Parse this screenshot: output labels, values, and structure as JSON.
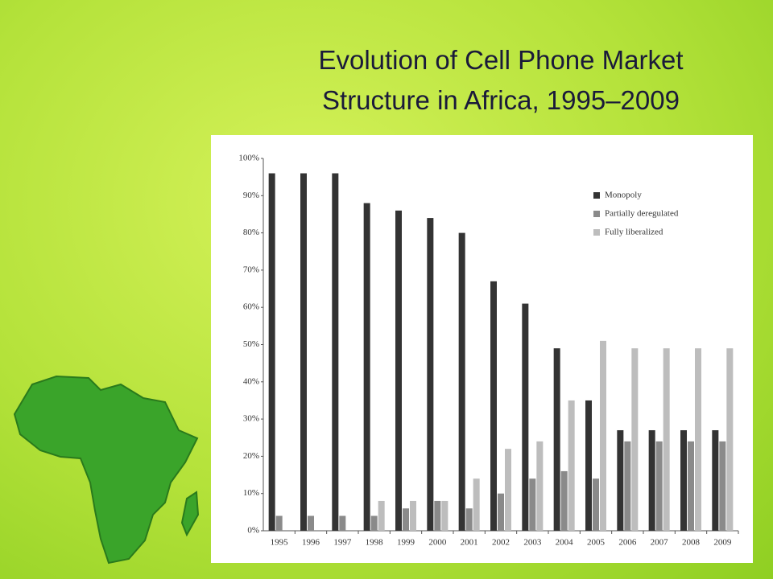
{
  "chart_data": {
    "type": "bar",
    "title": "Evolution of Cell Phone Market Structure in Africa, 1995–2009",
    "categories": [
      "1995",
      "1996",
      "1997",
      "1998",
      "1999",
      "2000",
      "2001",
      "2002",
      "2003",
      "2004",
      "2005",
      "2006",
      "2007",
      "2008",
      "2009"
    ],
    "series": [
      {
        "name": "Monopoly",
        "color": "#333333",
        "values": [
          96,
          96,
          96,
          88,
          86,
          84,
          80,
          67,
          61,
          49,
          35,
          27,
          27,
          27,
          27
        ]
      },
      {
        "name": "Partially deregulated",
        "color": "#8a8a8a",
        "values": [
          4,
          4,
          4,
          4,
          6,
          8,
          6,
          10,
          14,
          16,
          14,
          24,
          24,
          24,
          24
        ]
      },
      {
        "name": "Fully liberalized",
        "color": "#bdbdbd",
        "values": [
          0,
          0,
          0,
          8,
          8,
          8,
          14,
          22,
          24,
          35,
          51,
          49,
          49,
          49,
          49
        ]
      }
    ],
    "ylim": [
      0,
      100
    ],
    "yticks": [
      {
        "value": 0,
        "label": "0%"
      },
      {
        "value": 10,
        "label": "10%"
      },
      {
        "value": 20,
        "label": "20%"
      },
      {
        "value": 30,
        "label": "30%"
      },
      {
        "value": 40,
        "label": "40%"
      },
      {
        "value": 50,
        "label": "50%"
      },
      {
        "value": 60,
        "label": "60%"
      },
      {
        "value": 70,
        "label": "70%"
      },
      {
        "value": 80,
        "label": "80%"
      },
      {
        "value": 90,
        "label": "90%"
      },
      {
        "value": 100,
        "label": "100%"
      }
    ],
    "grid": false,
    "legend": "upper-right"
  }
}
